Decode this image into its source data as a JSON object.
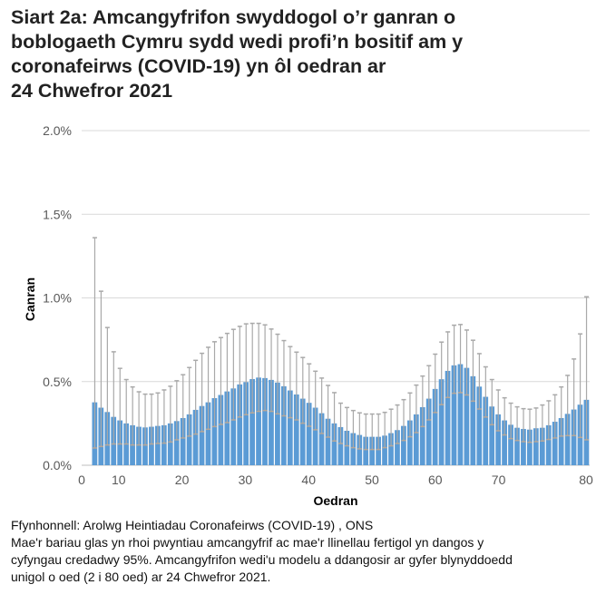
{
  "chart_data": {
    "type": "bar",
    "title": "Siart 2a: Amcangyfrifon swyddogol o’r ganran o boblogaeth Cymru sydd wedi profi’n bositif am y coronafeirws (COVID-19) yn ôl oedran ar 24 Chwefror 2021",
    "title_lines": [
      "Siart 2a: Amcangyfrifon swyddogol o’r ganran o",
      "boblogaeth Cymru sydd wedi profi’n bositif am y",
      "coronafeirws (COVID-19) yn ôl oedran ar",
      "24 Chwefror 2021"
    ],
    "xlabel": "Oedran",
    "ylabel": "Canran",
    "ylim": [
      0,
      2.0
    ],
    "yticks": [
      "0.0%",
      "0.5%",
      "1.0%",
      "1.5%",
      "2.0%"
    ],
    "ytick_values": [
      0,
      0.5,
      1.0,
      1.5,
      2.0
    ],
    "xticks": [
      "0",
      "10",
      "20",
      "30",
      "40",
      "50",
      "60",
      "70",
      "80"
    ],
    "xtick_values": [
      0,
      10,
      20,
      30,
      40,
      50,
      60,
      70,
      80
    ],
    "grid": true,
    "x_start_age": 2,
    "estimate": [
      0.376,
      0.344,
      0.318,
      0.289,
      0.268,
      0.25,
      0.239,
      0.23,
      0.226,
      0.23,
      0.235,
      0.239,
      0.25,
      0.264,
      0.282,
      0.304,
      0.331,
      0.354,
      0.376,
      0.401,
      0.42,
      0.441,
      0.459,
      0.483,
      0.497,
      0.515,
      0.524,
      0.521,
      0.51,
      0.494,
      0.472,
      0.447,
      0.423,
      0.398,
      0.373,
      0.344,
      0.311,
      0.278,
      0.25,
      0.228,
      0.206,
      0.192,
      0.181,
      0.17,
      0.17,
      0.17,
      0.177,
      0.192,
      0.21,
      0.235,
      0.268,
      0.304,
      0.347,
      0.398,
      0.456,
      0.514,
      0.564,
      0.597,
      0.604,
      0.582,
      0.532,
      0.47,
      0.409,
      0.351,
      0.304,
      0.268,
      0.242,
      0.224,
      0.217,
      0.213,
      0.221,
      0.224,
      0.239,
      0.26,
      0.282,
      0.307,
      0.333,
      0.362,
      0.391
    ],
    "lower": [
      0.103,
      0.112,
      0.121,
      0.127,
      0.127,
      0.127,
      0.121,
      0.121,
      0.121,
      0.127,
      0.13,
      0.132,
      0.139,
      0.152,
      0.163,
      0.174,
      0.186,
      0.201,
      0.215,
      0.231,
      0.244,
      0.255,
      0.271,
      0.288,
      0.302,
      0.313,
      0.322,
      0.327,
      0.322,
      0.307,
      0.295,
      0.284,
      0.271,
      0.251,
      0.233,
      0.212,
      0.19,
      0.168,
      0.145,
      0.13,
      0.116,
      0.105,
      0.098,
      0.094,
      0.094,
      0.094,
      0.105,
      0.116,
      0.13,
      0.148,
      0.17,
      0.195,
      0.231,
      0.271,
      0.315,
      0.362,
      0.405,
      0.43,
      0.434,
      0.42,
      0.383,
      0.336,
      0.288,
      0.242,
      0.206,
      0.181,
      0.159,
      0.148,
      0.141,
      0.137,
      0.141,
      0.145,
      0.154,
      0.163,
      0.174,
      0.177,
      0.177,
      0.166,
      0.152
    ],
    "upper": [
      1.36,
      1.04,
      0.823,
      0.678,
      0.579,
      0.512,
      0.468,
      0.439,
      0.425,
      0.425,
      0.432,
      0.45,
      0.472,
      0.505,
      0.541,
      0.584,
      0.627,
      0.669,
      0.705,
      0.738,
      0.763,
      0.788,
      0.812,
      0.83,
      0.845,
      0.848,
      0.848,
      0.839,
      0.814,
      0.783,
      0.745,
      0.709,
      0.676,
      0.644,
      0.606,
      0.562,
      0.521,
      0.477,
      0.434,
      0.371,
      0.345,
      0.327,
      0.313,
      0.306,
      0.306,
      0.306,
      0.316,
      0.335,
      0.36,
      0.392,
      0.432,
      0.479,
      0.533,
      0.595,
      0.664,
      0.736,
      0.797,
      0.837,
      0.841,
      0.808,
      0.747,
      0.667,
      0.588,
      0.512,
      0.45,
      0.403,
      0.371,
      0.349,
      0.338,
      0.335,
      0.342,
      0.36,
      0.385,
      0.421,
      0.468,
      0.537,
      0.635,
      0.785,
      1.007
    ],
    "colors": {
      "bar": "#5b9bd5",
      "error": "#a9a9a9",
      "grid": "#d9d9d9"
    }
  },
  "footer": {
    "source": "Ffynhonnell: Arolwg Heintiadau Coronafeirws (COVID-19) , ONS",
    "note_lines": [
      "Mae'r bariau glas yn rhoi pwyntiau amcangyfrif ac mae'r llinellau fertigol yn dangos y",
      "cyfyngau credadwy 95%. Amcangyfrifon wedi'u modelu a ddangosir ar gyfer blynyddoedd",
      "unigol o oed (2 i 80 oed) ar 24 Chwefror 2021."
    ]
  }
}
